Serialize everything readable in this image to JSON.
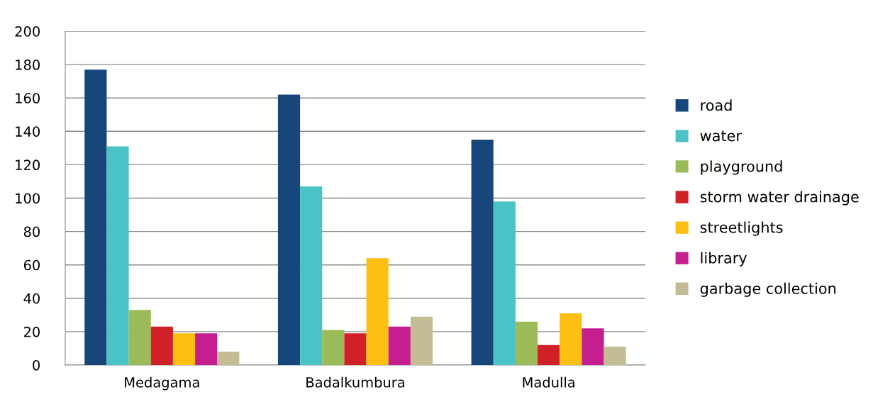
{
  "chart_data": {
    "type": "bar",
    "categories": [
      "Medagama",
      "Badalkumbura",
      "Madulla"
    ],
    "series": [
      {
        "name": "road",
        "color": "#17477a",
        "values": [
          177,
          162,
          135
        ]
      },
      {
        "name": "water",
        "color": "#4bc3c6",
        "values": [
          131,
          107,
          98
        ]
      },
      {
        "name": "playground",
        "color": "#9bbb59",
        "values": [
          33,
          21,
          26
        ]
      },
      {
        "name": "storm water drainage",
        "color": "#d02028",
        "values": [
          23,
          19,
          12
        ]
      },
      {
        "name": "streetlights",
        "color": "#fdbf12",
        "values": [
          19,
          64,
          31
        ]
      },
      {
        "name": "library",
        "color": "#c51f8f",
        "values": [
          19,
          23,
          22
        ]
      },
      {
        "name": "garbage collection",
        "color": "#c4bc94",
        "values": [
          8,
          29,
          11
        ]
      }
    ],
    "ylim": [
      0,
      200
    ],
    "yticks": [
      0,
      20,
      40,
      60,
      80,
      100,
      120,
      140,
      160,
      180,
      200
    ],
    "grid": "y",
    "legend": "right"
  }
}
